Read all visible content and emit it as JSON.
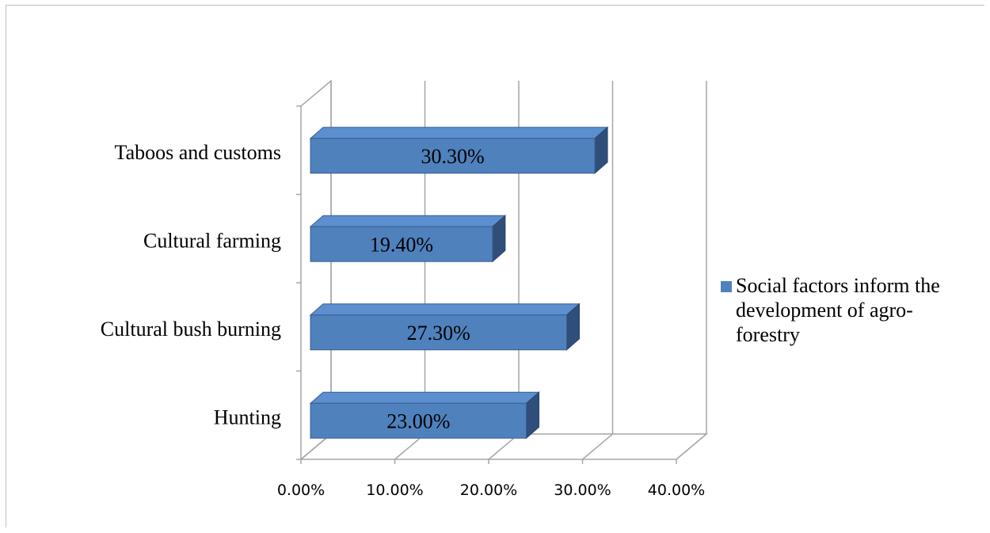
{
  "chart_data": {
    "type": "bar",
    "orientation": "horizontal",
    "style": "3d",
    "categories": [
      "Hunting",
      "Cultural bush burning",
      "Cultural farming",
      "Taboos and customs"
    ],
    "series": [
      {
        "name": "Social factors inform the development of agro-forestry",
        "values": [
          23.0,
          27.3,
          19.4,
          30.3
        ],
        "data_labels": [
          "23.00%",
          "27.30%",
          "19.40%",
          "30.30%"
        ],
        "color": "#4f81bd"
      }
    ],
    "x_ticks": [
      "0.00%",
      "10.00%",
      "20.00%",
      "30.00%",
      "40.00%"
    ],
    "xlim": [
      0,
      40
    ],
    "grid": "vertical",
    "legend": "right"
  }
}
